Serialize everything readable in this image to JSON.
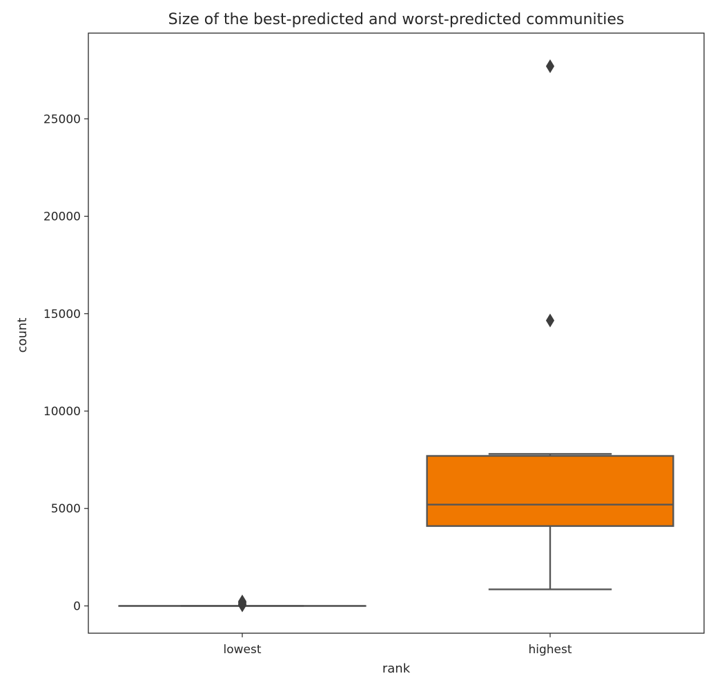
{
  "chart_data": {
    "type": "box",
    "title": "Size of the best-predicted and worst-predicted communities",
    "xlabel": "rank",
    "ylabel": "count",
    "ylim": [
      -1400,
      29400
    ],
    "yticks": [
      0,
      5000,
      10000,
      15000,
      20000,
      25000
    ],
    "ytick_labels": [
      "0",
      "5000",
      "10000",
      "15000",
      "20000",
      "25000"
    ],
    "grid": false,
    "categories": [
      "lowest",
      "highest"
    ],
    "boxes": [
      {
        "category": "lowest",
        "whisker_low": 0,
        "q1": 0,
        "median": 0,
        "q3": 0,
        "whisker_high": 0,
        "outliers": [
          30,
          70,
          120,
          180,
          230
        ],
        "color": "#3a7fc4"
      },
      {
        "category": "highest",
        "whisker_low": 850,
        "q1": 4100,
        "median": 5200,
        "q3": 7700,
        "whisker_high": 7800,
        "outliers": [
          14650,
          27700
        ],
        "color": "#f07800"
      }
    ]
  }
}
